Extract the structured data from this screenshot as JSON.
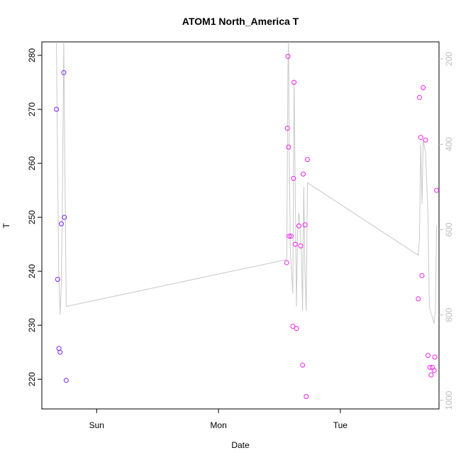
{
  "chart_data": {
    "type": "scatter",
    "title": "ATOM1 North_America T",
    "xlabel": "Date",
    "ylabel": "T",
    "x_ticks": [
      "Sun",
      "Mon",
      "Tue"
    ],
    "x_tick_days": [
      0,
      1,
      2
    ],
    "xlim_days": [
      -0.45,
      2.81
    ],
    "ylim": [
      214.5,
      282.5
    ],
    "y_ticks": [
      220,
      230,
      240,
      250,
      260,
      270,
      280
    ],
    "right_axis": {
      "ticks": [
        200,
        400,
        600,
        800,
        1000
      ],
      "range": [
        1020,
        160
      ],
      "color": "#bdbdbd"
    },
    "grid": false,
    "x_unit_note": "x values are days relative to Sun tick",
    "series": [
      {
        "color": "#7a22ff",
        "points": [
          [
            -0.33,
            270
          ],
          [
            -0.32,
            238.5
          ],
          [
            -0.31,
            225.7
          ],
          [
            -0.3,
            225
          ],
          [
            -0.29,
            248.8
          ],
          [
            -0.27,
            276.8
          ],
          [
            -0.265,
            250
          ],
          [
            -0.25,
            219.8
          ]
        ]
      },
      {
        "color": "#ee22ee",
        "points": [
          [
            1.56,
            241.6
          ],
          [
            1.565,
            266.5
          ],
          [
            1.57,
            279.8
          ],
          [
            1.575,
            263
          ],
          [
            1.58,
            246.5
          ],
          [
            1.595,
            246.5
          ],
          [
            1.61,
            229.8
          ],
          [
            1.615,
            257.2
          ],
          [
            1.62,
            275
          ],
          [
            1.63,
            245
          ],
          [
            1.64,
            229.4
          ],
          [
            1.66,
            248.4
          ],
          [
            1.675,
            244.7
          ],
          [
            1.69,
            222.6
          ],
          [
            1.695,
            258
          ],
          [
            1.71,
            248.6
          ],
          [
            1.72,
            216.8
          ],
          [
            1.73,
            260.7
          ],
          [
            2.64,
            234.9
          ],
          [
            2.65,
            272.2
          ],
          [
            2.66,
            264.8
          ],
          [
            2.67,
            239.2
          ],
          [
            2.68,
            274
          ],
          [
            2.7,
            264.3
          ],
          [
            2.72,
            224.4
          ],
          [
            2.735,
            222.2
          ],
          [
            2.745,
            220.8
          ],
          [
            2.755,
            222.2
          ],
          [
            2.77,
            221.6
          ],
          [
            2.775,
            224.1
          ],
          [
            2.79,
            255
          ]
        ]
      }
    ],
    "pressure_line": {
      "color": "#c8c8c8",
      "points": [
        [
          -0.33,
          160
        ],
        [
          -0.32,
          470
        ],
        [
          -0.31,
          720
        ],
        [
          -0.3,
          800
        ],
        [
          -0.29,
          720
        ],
        [
          -0.28,
          500
        ],
        [
          -0.27,
          160
        ],
        [
          -0.26,
          480
        ],
        [
          -0.25,
          780
        ],
        [
          1.56,
          670
        ],
        [
          1.57,
          220
        ],
        [
          1.575,
          160
        ],
        [
          1.58,
          400
        ],
        [
          1.59,
          650
        ],
        [
          1.6,
          700
        ],
        [
          1.61,
          750
        ],
        [
          1.62,
          250
        ],
        [
          1.63,
          520
        ],
        [
          1.64,
          780
        ],
        [
          1.65,
          600
        ],
        [
          1.66,
          560
        ],
        [
          1.67,
          600
        ],
        [
          1.68,
          650
        ],
        [
          1.69,
          790
        ],
        [
          1.7,
          500
        ],
        [
          1.71,
          700
        ],
        [
          1.72,
          790
        ],
        [
          1.73,
          490
        ],
        [
          2.64,
          660
        ],
        [
          2.65,
          620
        ],
        [
          2.66,
          400
        ],
        [
          2.67,
          540
        ],
        [
          2.68,
          390
        ],
        [
          2.7,
          420
        ],
        [
          2.72,
          570
        ],
        [
          2.73,
          780
        ],
        [
          2.75,
          800
        ],
        [
          2.77,
          820
        ],
        [
          2.78,
          790
        ],
        [
          2.79,
          590
        ]
      ]
    }
  }
}
